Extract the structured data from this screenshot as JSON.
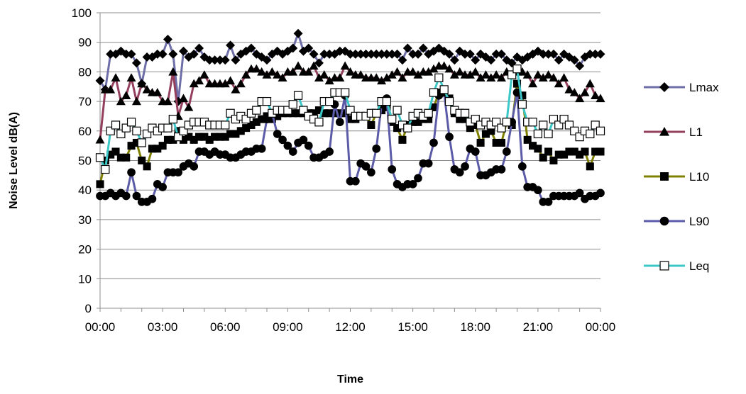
{
  "chart_data": {
    "type": "line",
    "xlabel": "Time",
    "ylabel": "Noise Level dB(A)",
    "ylim": [
      0,
      100
    ],
    "yticks": [
      0,
      10,
      20,
      30,
      40,
      50,
      60,
      70,
      80,
      90,
      100
    ],
    "xlim": [
      0,
      24
    ],
    "xticks": [
      0,
      3,
      6,
      9,
      12,
      15,
      18,
      21,
      24
    ],
    "xtick_labels": [
      "00:00",
      "03:00",
      "06:00",
      "09:00",
      "12:00",
      "15:00",
      "18:00",
      "21:00",
      "00:00"
    ],
    "grid": "horizontal",
    "legend_position": "right",
    "x_hours": [
      0.0,
      0.25,
      0.5,
      0.75,
      1.0,
      1.25,
      1.5,
      1.75,
      2.0,
      2.25,
      2.5,
      2.75,
      3.0,
      3.25,
      3.5,
      3.75,
      4.0,
      4.25,
      4.5,
      4.75,
      5.0,
      5.25,
      5.5,
      5.75,
      6.0,
      6.25,
      6.5,
      6.75,
      7.0,
      7.25,
      7.5,
      7.75,
      8.0,
      8.25,
      8.5,
      8.75,
      9.0,
      9.25,
      9.5,
      9.75,
      10.0,
      10.25,
      10.5,
      10.75,
      11.0,
      11.25,
      11.5,
      11.75,
      12.0,
      12.25,
      12.5,
      12.75,
      13.0,
      13.25,
      13.5,
      13.75,
      14.0,
      14.25,
      14.5,
      14.75,
      15.0,
      15.25,
      15.5,
      15.75,
      16.0,
      16.25,
      16.5,
      16.75,
      17.0,
      17.25,
      17.5,
      17.75,
      18.0,
      18.25,
      18.5,
      18.75,
      19.0,
      19.25,
      19.5,
      19.75,
      20.0,
      20.25,
      20.5,
      20.75,
      21.0,
      21.25,
      21.5,
      21.75,
      22.0,
      22.25,
      22.5,
      22.75,
      23.0,
      23.25,
      23.5,
      23.75,
      24.0
    ],
    "series": [
      {
        "name": "Lmax",
        "marker": "diamond",
        "color": "#6E6EA8",
        "values": [
          77,
          74,
          86,
          86,
          87,
          86,
          86,
          83,
          76,
          85,
          85,
          86,
          86,
          91,
          86,
          70,
          87,
          85,
          86,
          88,
          85,
          84,
          84,
          84,
          84,
          89,
          84,
          86,
          87,
          88,
          86,
          85,
          84,
          86,
          87,
          86,
          87,
          88,
          93,
          87,
          88,
          86,
          83,
          86,
          86,
          86,
          87,
          87,
          86,
          86,
          86,
          86,
          86,
          86,
          86,
          86,
          86,
          86,
          84,
          88,
          86,
          86,
          88,
          86,
          87,
          88,
          87,
          86,
          84,
          87,
          86,
          86,
          84,
          86,
          85,
          84,
          86,
          86,
          84,
          83,
          85,
          84,
          85,
          86,
          87,
          86,
          86,
          86,
          84,
          86,
          85,
          84,
          82,
          85,
          86,
          86,
          86
        ]
      },
      {
        "name": "L1",
        "marker": "triangle",
        "color": "#943F5E",
        "values": [
          57,
          74,
          74,
          78,
          70,
          72,
          78,
          70,
          76,
          74,
          73,
          73,
          70,
          70,
          80,
          65,
          71,
          68,
          76,
          77,
          79,
          76,
          76,
          76,
          76,
          77,
          74,
          76,
          79,
          81,
          81,
          80,
          79,
          80,
          79,
          78,
          80,
          80,
          82,
          80,
          80,
          82,
          78,
          79,
          77,
          78,
          78,
          82,
          80,
          79,
          79,
          78,
          78,
          78,
          77,
          78,
          79,
          80,
          78,
          80,
          80,
          79,
          80,
          80,
          81,
          82,
          82,
          81,
          79,
          80,
          79,
          79,
          80,
          78,
          79,
          78,
          79,
          78,
          80,
          79,
          80,
          80,
          79,
          76,
          79,
          78,
          79,
          78,
          76,
          78,
          74,
          73,
          71,
          73,
          76,
          72,
          71
        ]
      },
      {
        "name": "L10",
        "marker": "square",
        "color": "#808000",
        "values": [
          42,
          50,
          52,
          53,
          51,
          51,
          55,
          56,
          50,
          48,
          54,
          54,
          55,
          57,
          57,
          60,
          57,
          58,
          57,
          58,
          58,
          57,
          58,
          58,
          58,
          59,
          59,
          60,
          61,
          62,
          63,
          64,
          65,
          64,
          65,
          66,
          66,
          66,
          66,
          66,
          66,
          66,
          67,
          66,
          66,
          66,
          66,
          66,
          64,
          64,
          65,
          65,
          62,
          66,
          67,
          68,
          63,
          61,
          57,
          62,
          63,
          63,
          64,
          64,
          68,
          73,
          73,
          71,
          66,
          64,
          64,
          61,
          62,
          56,
          59,
          60,
          56,
          56,
          63,
          62,
          76,
          72,
          57,
          55,
          54,
          51,
          53,
          50,
          52,
          52,
          53,
          53,
          52,
          53,
          48,
          53,
          53
        ]
      },
      {
        "name": "L90",
        "marker": "circle",
        "color": "#5B5BA8",
        "values": [
          38,
          38,
          39,
          38,
          39,
          38,
          46,
          38,
          36,
          36,
          37,
          42,
          41,
          46,
          46,
          46,
          48,
          49,
          48,
          53,
          53,
          52,
          53,
          52,
          52,
          51,
          51,
          52,
          53,
          53,
          54,
          54,
          64,
          66,
          59,
          57,
          55,
          53,
          56,
          57,
          55,
          51,
          51,
          52,
          53,
          69,
          63,
          72,
          43,
          43,
          49,
          48,
          46,
          54,
          69,
          71,
          47,
          42,
          41,
          42,
          42,
          44,
          49,
          49,
          56,
          72,
          73,
          58,
          47,
          46,
          48,
          54,
          53,
          45,
          45,
          46,
          47,
          47,
          53,
          63,
          73,
          48,
          41,
          41,
          40,
          36,
          36,
          38,
          38,
          38,
          38,
          38,
          39,
          37,
          38,
          38,
          39
        ]
      },
      {
        "name": "Leq",
        "marker": "open-square",
        "color": "#3CC8C8",
        "values": [
          51,
          47,
          60,
          62,
          59,
          61,
          63,
          60,
          56,
          59,
          61,
          60,
          61,
          61,
          64,
          58,
          60,
          62,
          63,
          63,
          63,
          62,
          62,
          62,
          62,
          66,
          64,
          65,
          64,
          66,
          67,
          70,
          70,
          66,
          67,
          67,
          67,
          69,
          72,
          67,
          65,
          64,
          63,
          70,
          70,
          73,
          73,
          73,
          67,
          65,
          65,
          65,
          66,
          66,
          70,
          70,
          64,
          67,
          62,
          61,
          65,
          66,
          65,
          66,
          73,
          78,
          74,
          70,
          67,
          66,
          66,
          63,
          64,
          62,
          63,
          62,
          63,
          61,
          63,
          79,
          81,
          69,
          63,
          63,
          59,
          62,
          59,
          64,
          62,
          64,
          62,
          60,
          58,
          60,
          59,
          62,
          60
        ]
      }
    ]
  }
}
